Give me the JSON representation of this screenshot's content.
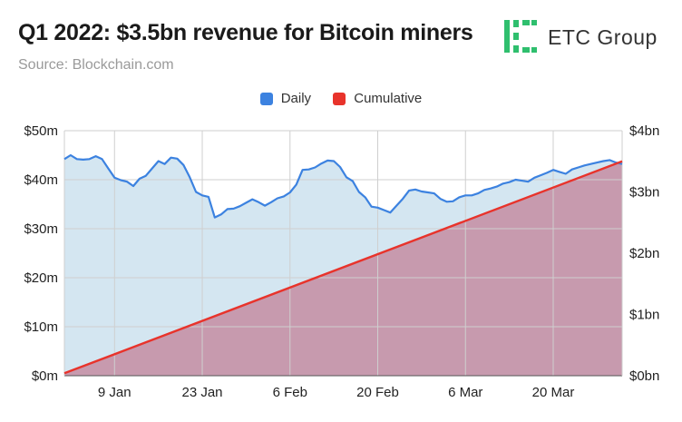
{
  "header": {
    "title": "Q1 2022: $3.5bn revenue for Bitcoin miners",
    "source": "Source: Blockchain.com",
    "logo_text": "ETC Group"
  },
  "colors": {
    "daily_line": "#3c82e0",
    "daily_fill": "#cfe3ef",
    "cumulative_line": "#e8332b",
    "cumulative_fill": "#c79aae",
    "logo_green": "#2fbf6e"
  },
  "chart_data": {
    "type": "area",
    "title": "Q1 2022: $3.5bn revenue for Bitcoin miners",
    "legend_position": "top-center",
    "grid": true,
    "x_start_date": "2022-01-01",
    "x_end_date": "2022-03-31",
    "x_tick_labels": [
      "9 Jan",
      "23 Jan",
      "6 Feb",
      "20 Feb",
      "6 Mar",
      "20 Mar"
    ],
    "x_tick_dates": [
      "2022-01-09",
      "2022-01-23",
      "2022-02-06",
      "2022-02-20",
      "2022-03-06",
      "2022-03-20"
    ],
    "y_left": {
      "ticks": [
        "$0m",
        "$10m",
        "$20m",
        "$30m",
        "$40m",
        "$50m"
      ],
      "range": [
        0,
        50
      ],
      "unit": "USD million"
    },
    "y_right": {
      "ticks": [
        "$0bn",
        "$1bn",
        "$2bn",
        "$3bn",
        "$4bn"
      ],
      "range": [
        0,
        4
      ],
      "unit": "USD billion"
    },
    "series": [
      {
        "name": "Daily",
        "axis": "left",
        "values": [
          44.2,
          45,
          44.2,
          44.1,
          44.2,
          44.8,
          44.2,
          42.3,
          40.4,
          39.9,
          39.6,
          38.7,
          40.2,
          40.8,
          42.3,
          43.8,
          43.2,
          44.5,
          44.3,
          43,
          40.5,
          37.5,
          36.8,
          36.5,
          32.3,
          32.9,
          34,
          34.1,
          34.6,
          35.3,
          36,
          35.4,
          34.7,
          35.4,
          36.2,
          36.6,
          37.4,
          39,
          42,
          42.1,
          42.5,
          43.3,
          43.9,
          43.8,
          42.6,
          40.5,
          39.7,
          37.5,
          36.4,
          34.5,
          34.3,
          33.8,
          33.3,
          34.7,
          36.1,
          37.8,
          38,
          37.6,
          37.4,
          37.2,
          36.1,
          35.5,
          35.6,
          36.4,
          36.8,
          36.8,
          37.2,
          37.9,
          38.2,
          38.6,
          39.2,
          39.5,
          40,
          39.8,
          39.6,
          40.4,
          40.9,
          41.4,
          42,
          41.6,
          41.2,
          42.1,
          42.5,
          42.9,
          43.2,
          43.5,
          43.8,
          44,
          43.5,
          43.2
        ]
      },
      {
        "name": "Cumulative",
        "axis": "right",
        "start": 0.04,
        "end": 3.5
      }
    ]
  }
}
